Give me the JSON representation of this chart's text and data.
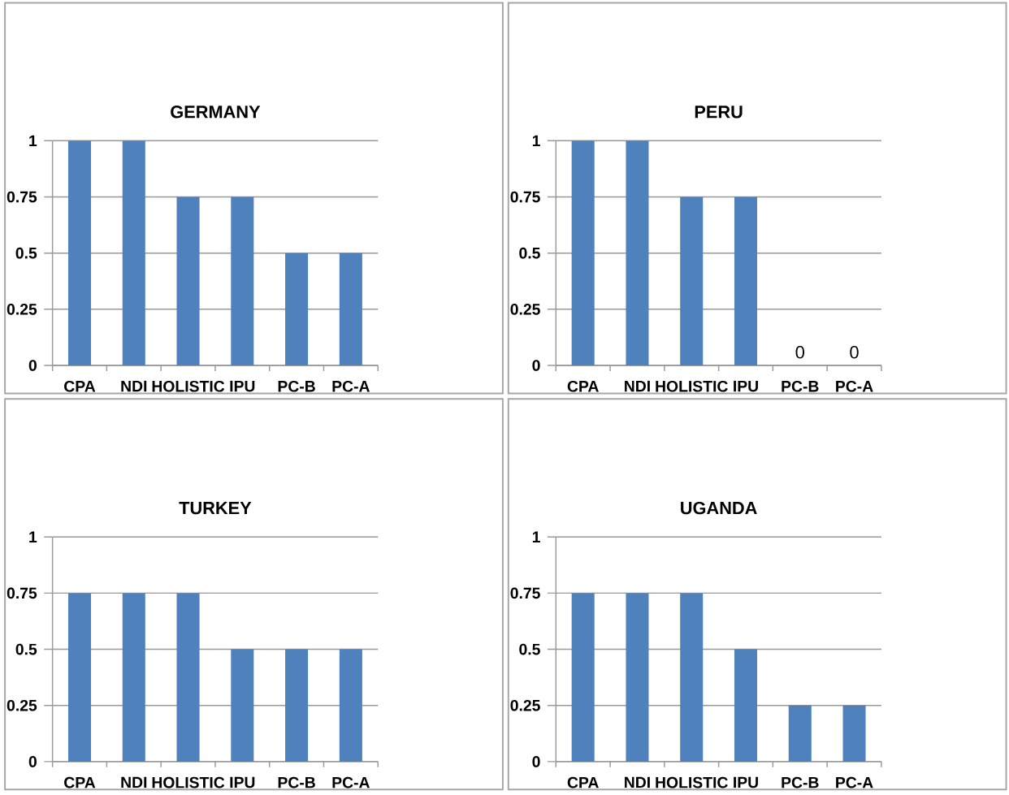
{
  "chart_data": [
    {
      "type": "bar",
      "title": "GERMANY",
      "categories": [
        "CPA",
        "NDI",
        "HOLISTIC",
        "IPU",
        "PC-B",
        "PC-A"
      ],
      "values": [
        1,
        1,
        0.75,
        0.75,
        0.5,
        0.5
      ],
      "color": "#4f81bd",
      "ylim": [
        0,
        1
      ],
      "yticks": [
        0,
        0.25,
        0.5,
        0.75,
        1
      ],
      "grid": "y"
    },
    {
      "type": "bar",
      "title": "PERU",
      "categories": [
        "CPA",
        "NDI",
        "HOLISTIC",
        "IPU",
        "PC-B",
        "PC-A"
      ],
      "values": [
        1,
        1,
        0.75,
        0.75,
        0,
        0
      ],
      "value_labels": [
        null,
        null,
        null,
        null,
        "0",
        "0"
      ],
      "color": "#4f81bd",
      "ylim": [
        0,
        1
      ],
      "yticks": [
        0,
        0.25,
        0.5,
        0.75,
        1
      ],
      "grid": "y"
    },
    {
      "type": "bar",
      "title": "TURKEY",
      "categories": [
        "CPA",
        "NDI",
        "HOLISTIC",
        "IPU",
        "PC-B",
        "PC-A"
      ],
      "values": [
        0.75,
        0.75,
        0.75,
        0.5,
        0.5,
        0.5
      ],
      "color": "#4f81bd",
      "ylim": [
        0,
        1
      ],
      "yticks": [
        0,
        0.25,
        0.5,
        0.75,
        1
      ],
      "grid": "y"
    },
    {
      "type": "bar",
      "title": "UGANDA",
      "categories": [
        "CPA",
        "NDI",
        "HOLISTIC",
        "IPU",
        "PC-B",
        "PC-A"
      ],
      "values": [
        0.75,
        0.75,
        0.75,
        0.5,
        0.25,
        0.25
      ],
      "color": "#4f81bd",
      "ylim": [
        0,
        1
      ],
      "yticks": [
        0,
        0.25,
        0.5,
        0.75,
        1
      ],
      "grid": "y"
    }
  ]
}
